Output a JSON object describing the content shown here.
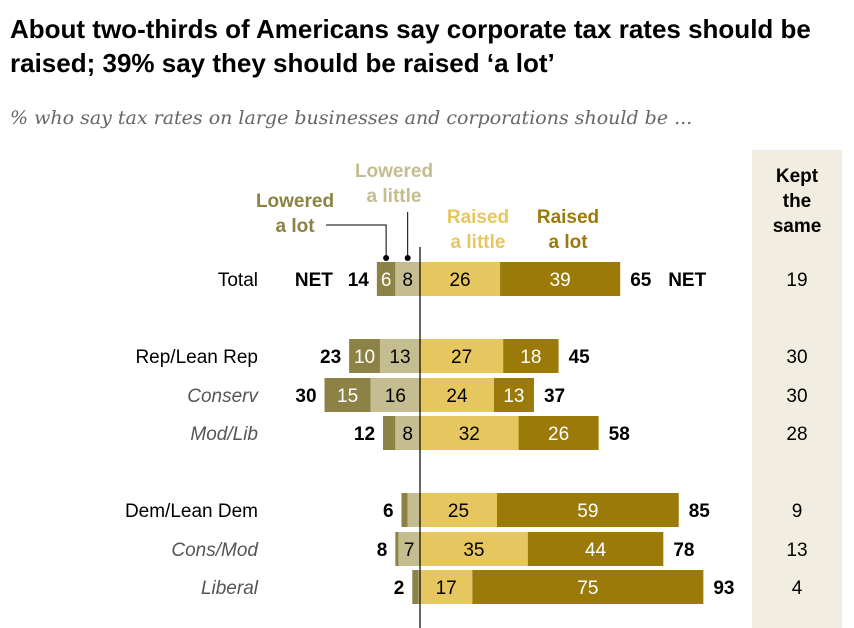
{
  "chart_data": {
    "type": "bar",
    "orientation": "horizontal-diverging",
    "title": "About two-thirds of Americans say corporate tax rates should be raised; 39% say they should be raised ‘a lot’",
    "subtitle": "% who say tax rates on large businesses and corporations should be ...",
    "legend": {
      "lowered_lot": "Lowered a lot",
      "lowered_little": "Lowered a little",
      "raised_little": "Raised a little",
      "raised_lot": "Raised a lot",
      "kept_same": "Kept the same"
    },
    "net_label": "NET",
    "colors": {
      "lowered_lot": "#8c8245",
      "lowered_little": "#c4bd8f",
      "raised_little": "#e6c65f",
      "raised_lot": "#9b7a0a",
      "kept_bg": "#f1eee1"
    },
    "rows": [
      {
        "label": "Total",
        "italic": false,
        "lowered_lot": 6,
        "lowered_little": 8,
        "lowered_net": 14,
        "raised_little": 26,
        "raised_lot": 39,
        "raised_net": 65,
        "kept_same": 19
      },
      {
        "label": "Rep/Lean Rep",
        "italic": false,
        "lowered_lot": 10,
        "lowered_little": 13,
        "lowered_net": 23,
        "raised_little": 27,
        "raised_lot": 18,
        "raised_net": 45,
        "kept_same": 30
      },
      {
        "label": "Conserv",
        "italic": true,
        "lowered_lot": 15,
        "lowered_little": 16,
        "lowered_net": 30,
        "raised_little": 24,
        "raised_lot": 13,
        "raised_net": 37,
        "kept_same": 30
      },
      {
        "label": "Mod/Lib",
        "italic": true,
        "lowered_lot": 4,
        "lowered_little": 8,
        "lowered_net": 12,
        "raised_little": 32,
        "raised_lot": 26,
        "raised_net": 58,
        "kept_same": 28
      },
      {
        "label": "Dem/Lean Dem",
        "italic": false,
        "lowered_lot": 2,
        "lowered_little": 4,
        "lowered_net": 6,
        "raised_little": 25,
        "raised_lot": 59,
        "raised_net": 85,
        "kept_same": 9
      },
      {
        "label": "Cons/Mod",
        "italic": true,
        "lowered_lot": 1,
        "lowered_little": 7,
        "lowered_net": 8,
        "raised_little": 35,
        "raised_lot": 44,
        "raised_net": 78,
        "kept_same": 13
      },
      {
        "label": "Liberal",
        "italic": true,
        "lowered_lot": 2,
        "lowered_little": 0.5,
        "lowered_net": 2,
        "raised_little": 17,
        "raised_lot": 75,
        "raised_net": 93,
        "kept_same": 4
      }
    ]
  }
}
